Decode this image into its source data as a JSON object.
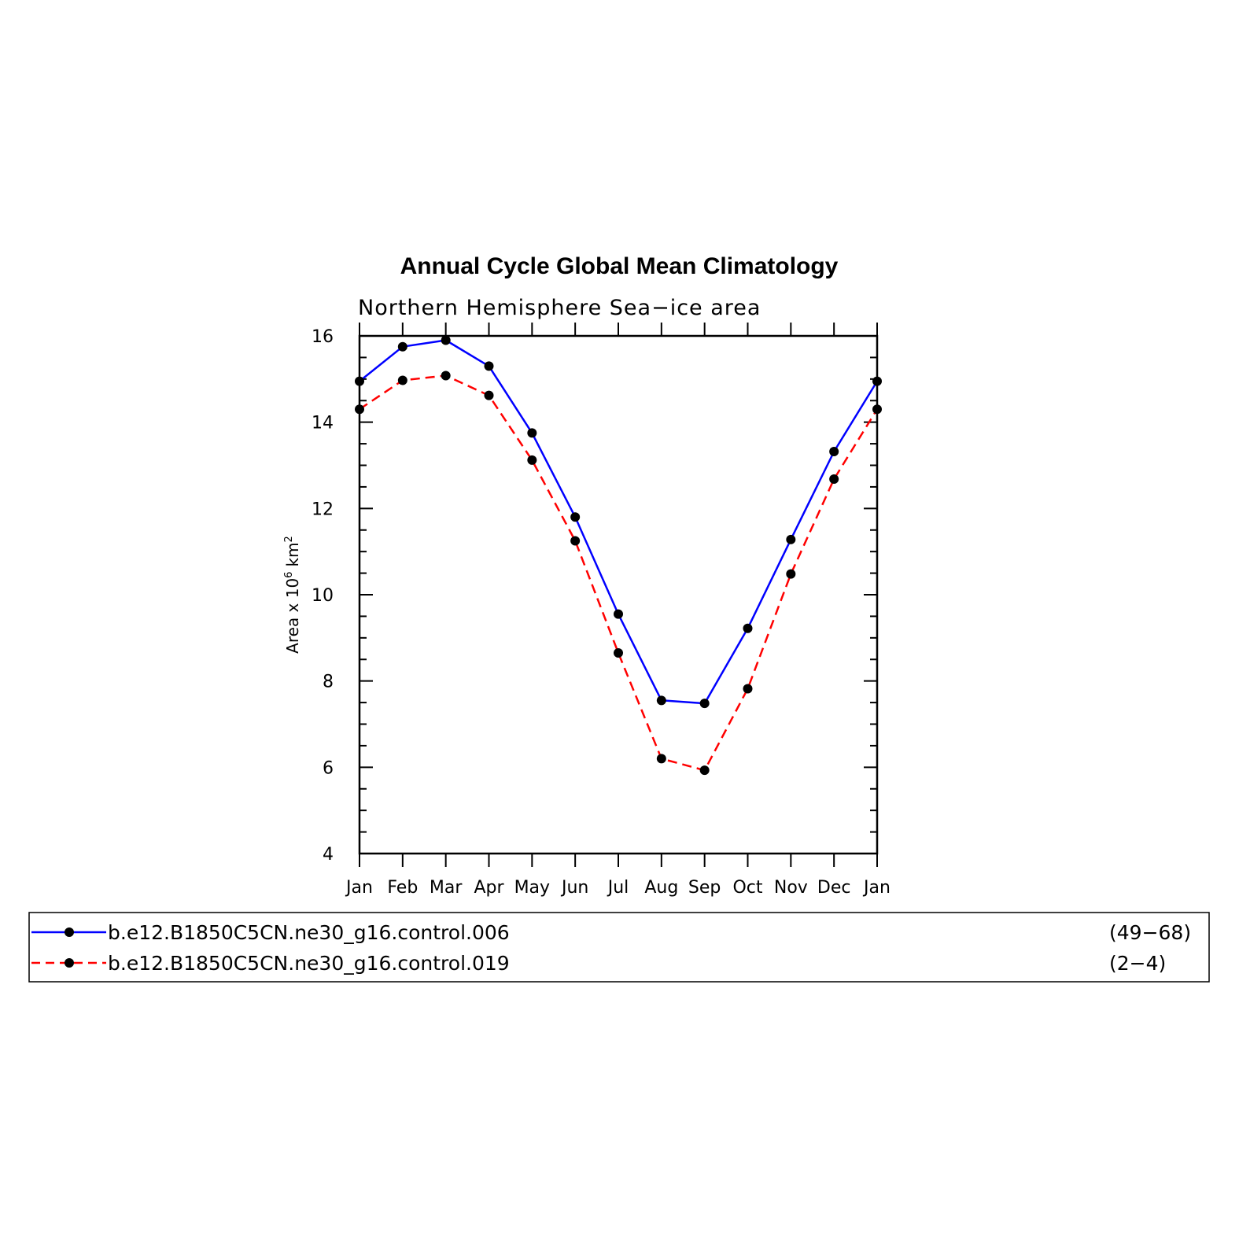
{
  "chart_data": {
    "type": "line",
    "title": "Annual Cycle Global Mean Climatology",
    "subtitle": "Northern Hemisphere Sea−ice area",
    "ylabel": "Area x 10",
    "ylabel_sup": "6",
    "ylabel_unit": "km",
    "ylabel_unit_sup": "2",
    "categories": [
      "Jan",
      "Feb",
      "Mar",
      "Apr",
      "May",
      "Jun",
      "Jul",
      "Aug",
      "Sep",
      "Oct",
      "Nov",
      "Dec",
      "Jan"
    ],
    "ylim": [
      4,
      16
    ],
    "yticks": [
      "4",
      "6",
      "8",
      "10",
      "12",
      "14",
      "16"
    ],
    "grid": false,
    "legend_position": "bottom",
    "series": [
      {
        "name": "b.e12.B1850C5CN.ne30_g16.control.006",
        "years": "(49−68)",
        "color": "#0000ff",
        "dash": "solid",
        "values": [
          14.95,
          15.75,
          15.9,
          15.3,
          13.75,
          11.8,
          9.55,
          7.55,
          7.48,
          9.22,
          11.28,
          13.32,
          14.95
        ]
      },
      {
        "name": "b.e12.B1850C5CN.ne30_g16.control.019",
        "years": "(2−4)",
        "color": "#ff0000",
        "dash": "dashed",
        "values": [
          14.3,
          14.97,
          15.08,
          14.62,
          13.12,
          11.25,
          8.65,
          6.2,
          5.93,
          7.82,
          10.48,
          12.68,
          14.3
        ]
      }
    ]
  }
}
